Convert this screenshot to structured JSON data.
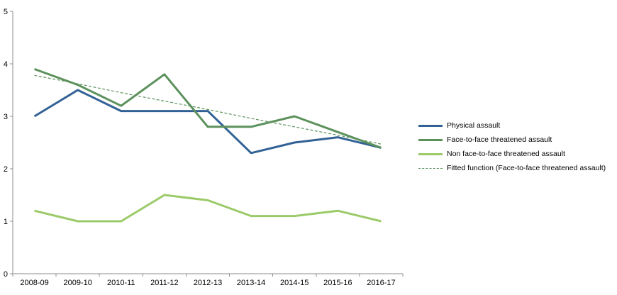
{
  "chart_data": {
    "type": "line",
    "title": "",
    "xlabel": "",
    "ylabel": "",
    "categories": [
      "2008-09",
      "2009-10",
      "2010-11",
      "2011-12",
      "2012-13",
      "2013-14",
      "2014-15",
      "2015-16",
      "2016-17"
    ],
    "series": [
      {
        "name": "Physical assault",
        "color": "#326295",
        "style": "solid",
        "values": [
          3.0,
          3.5,
          3.1,
          3.1,
          3.1,
          2.3,
          2.5,
          2.6,
          2.4
        ]
      },
      {
        "name": "Face-to-face threatened assault",
        "color": "#5C915C",
        "style": "solid",
        "values": [
          3.9,
          3.6,
          3.2,
          3.8,
          2.8,
          2.8,
          3.0,
          2.7,
          2.4
        ]
      },
      {
        "name": "Non face-to-face threatened assault",
        "color": "#9BCA69",
        "style": "solid",
        "values": [
          1.2,
          1.0,
          1.0,
          1.5,
          1.4,
          1.1,
          1.1,
          1.2,
          1.0
        ]
      },
      {
        "name": "Fitted function (Face-to-face threatened assault)",
        "color": "#5C915C",
        "style": "dashed",
        "values": [
          3.78,
          3.62,
          3.45,
          3.29,
          3.13,
          2.96,
          2.8,
          2.64,
          2.47
        ]
      }
    ],
    "ylim": [
      0,
      5
    ],
    "yticks": [
      0,
      1,
      2,
      3,
      4,
      5
    ],
    "grid": false,
    "legend_position": "right",
    "axis_color": "#8C8C8C",
    "label_color": "#000000"
  }
}
